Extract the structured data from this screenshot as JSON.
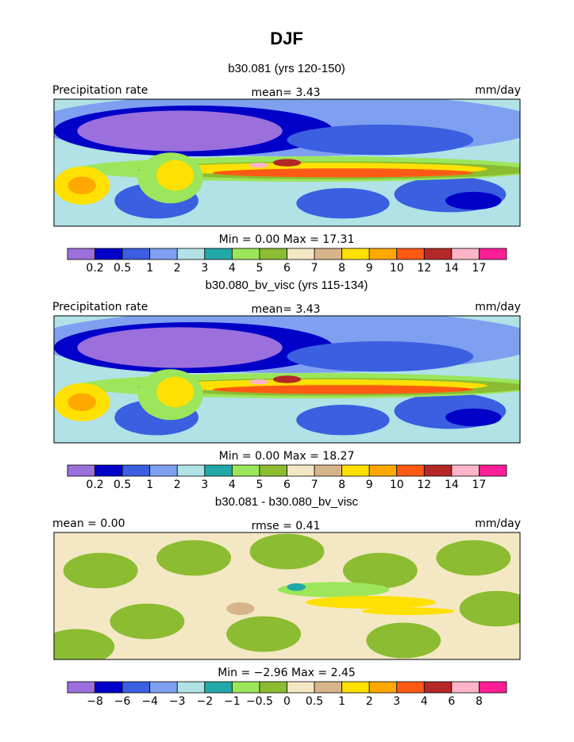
{
  "title": "DJF",
  "panels": [
    {
      "subtitle": "b30.081 (yrs 120-150)",
      "left_label": "Precipitation rate",
      "center_label": "mean=   3.43",
      "right_label": "mm/day",
      "range_label": "Min =    0.00  Max =   17.31",
      "colorbar": {
        "colors": [
          "#9b6fdc",
          "#0000c8",
          "#3a5fe0",
          "#7f9ff0",
          "#b0e2e6",
          "#22a8a8",
          "#9be65a",
          "#8cbc32",
          "#f4e8c4",
          "#d8b48a",
          "#ffe000",
          "#ffa800",
          "#ff5a14",
          "#b42828",
          "#ffb4c8",
          "#ff1e96"
        ],
        "labels": [
          "0.2",
          "0.5",
          "1",
          "2",
          "3",
          "4",
          "5",
          "6",
          "7",
          "8",
          "9",
          "10",
          "12",
          "14",
          "17"
        ]
      }
    },
    {
      "subtitle": "b30.080_bv_visc (yrs 115-134)",
      "left_label": "Precipitation rate",
      "center_label": "mean=   3.43",
      "right_label": "mm/day",
      "range_label": "Min =    0.00  Max =   18.27",
      "colorbar": {
        "colors": [
          "#9b6fdc",
          "#0000c8",
          "#3a5fe0",
          "#7f9ff0",
          "#b0e2e6",
          "#22a8a8",
          "#9be65a",
          "#8cbc32",
          "#f4e8c4",
          "#d8b48a",
          "#ffe000",
          "#ffa800",
          "#ff5a14",
          "#b42828",
          "#ffb4c8",
          "#ff1e96"
        ],
        "labels": [
          "0.2",
          "0.5",
          "1",
          "2",
          "3",
          "4",
          "5",
          "6",
          "7",
          "8",
          "9",
          "10",
          "12",
          "14",
          "17"
        ]
      }
    },
    {
      "subtitle": "b30.081 - b30.080_bv_visc",
      "left_label": "mean =   0.00",
      "center_label": "rmse =   0.41",
      "right_label": "mm/day",
      "range_label": "Min =   −2.96  Max =    2.45",
      "colorbar": {
        "colors": [
          "#9b6fdc",
          "#0000c8",
          "#3a5fe0",
          "#7f9ff0",
          "#b0e2e6",
          "#22a8a8",
          "#9be65a",
          "#8cbc32",
          "#f4e8c4",
          "#d8b48a",
          "#ffe000",
          "#ffa800",
          "#ff5a14",
          "#b42828",
          "#ffb4c8",
          "#ff1e96"
        ],
        "labels": [
          "−8",
          "−6",
          "−4",
          "−3",
          "−2",
          "−1",
          "−0.5",
          "0",
          "0.5",
          "1",
          "2",
          "3",
          "4",
          "6",
          "8"
        ]
      }
    }
  ]
}
